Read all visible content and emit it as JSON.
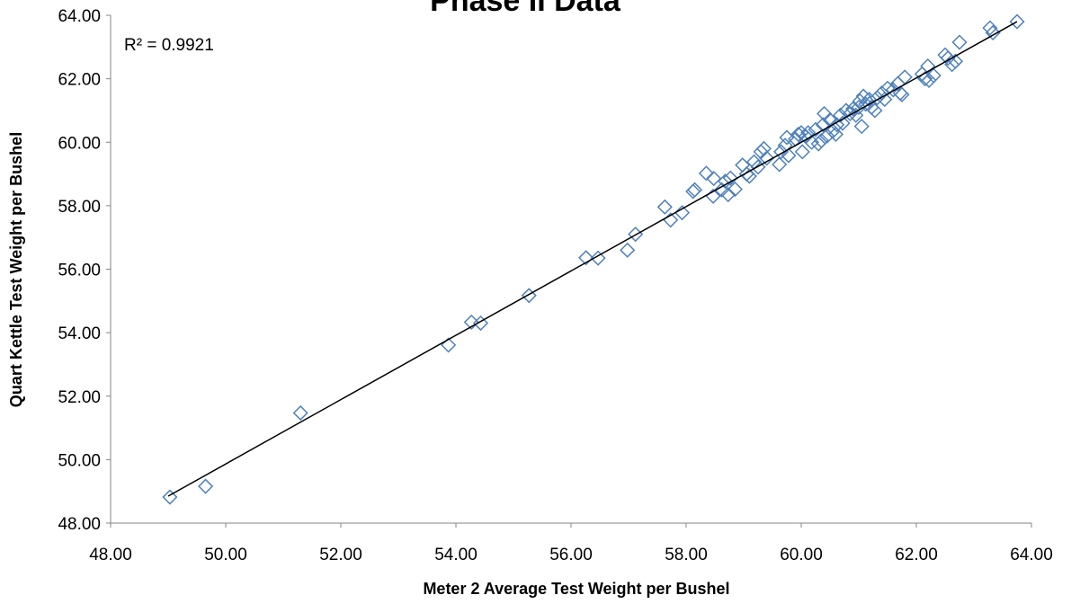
{
  "chart_data": {
    "type": "scatter",
    "title": "Phase II Data",
    "xlabel": "Meter 2 Average Test Weight per Bushel",
    "ylabel": "Quart Kettle Test Weight per Bushel",
    "xlim": [
      48,
      64
    ],
    "ylim": [
      48,
      64
    ],
    "x_ticks": [
      "48.00",
      "50.00",
      "52.00",
      "54.00",
      "56.00",
      "58.00",
      "60.00",
      "62.00",
      "64.00"
    ],
    "y_ticks": [
      "48.00",
      "50.00",
      "52.00",
      "54.00",
      "56.00",
      "58.00",
      "60.00",
      "62.00",
      "64.00"
    ],
    "grid": false,
    "legend": "none",
    "annotation": "R² = 0.9921",
    "marker": "diamond-open",
    "marker_color": "#4F81BD",
    "trendline": {
      "type": "linear",
      "color": "#000000",
      "x_range": [
        49.0,
        63.75
      ],
      "y_range": [
        48.85,
        63.8
      ]
    },
    "series": [
      {
        "points": [
          [
            49.03,
            48.82
          ],
          [
            49.65,
            49.16
          ],
          [
            51.3,
            51.47
          ],
          [
            53.87,
            53.61
          ],
          [
            54.27,
            54.33
          ],
          [
            54.43,
            54.3
          ],
          [
            55.27,
            55.17
          ],
          [
            56.26,
            56.36
          ],
          [
            56.47,
            56.35
          ],
          [
            56.98,
            56.6
          ],
          [
            57.12,
            57.1
          ],
          [
            57.63,
            57.96
          ],
          [
            57.73,
            57.55
          ],
          [
            57.93,
            57.78
          ],
          [
            58.12,
            58.45
          ],
          [
            58.15,
            58.5
          ],
          [
            58.35,
            59.02
          ],
          [
            58.47,
            58.3
          ],
          [
            58.48,
            58.86
          ],
          [
            58.62,
            58.5
          ],
          [
            58.68,
            58.77
          ],
          [
            58.73,
            58.35
          ],
          [
            58.77,
            58.87
          ],
          [
            58.85,
            58.52
          ],
          [
            58.98,
            59.28
          ],
          [
            59.05,
            59.0
          ],
          [
            59.1,
            58.93
          ],
          [
            59.18,
            59.38
          ],
          [
            59.25,
            59.22
          ],
          [
            59.3,
            59.7
          ],
          [
            59.35,
            59.8
          ],
          [
            59.4,
            59.5
          ],
          [
            59.62,
            59.3
          ],
          [
            59.65,
            59.7
          ],
          [
            59.72,
            59.9
          ],
          [
            59.75,
            60.15
          ],
          [
            59.78,
            59.58
          ],
          [
            59.9,
            60.1
          ],
          [
            59.95,
            60.25
          ],
          [
            60.0,
            60.3
          ],
          [
            60.02,
            59.7
          ],
          [
            60.08,
            60.18
          ],
          [
            60.12,
            60.3
          ],
          [
            60.18,
            60.0
          ],
          [
            60.25,
            60.4
          ],
          [
            60.3,
            59.95
          ],
          [
            60.35,
            60.05
          ],
          [
            60.38,
            60.55
          ],
          [
            60.4,
            60.9
          ],
          [
            60.45,
            60.2
          ],
          [
            60.5,
            60.7
          ],
          [
            60.55,
            60.35
          ],
          [
            60.6,
            60.25
          ],
          [
            60.62,
            60.55
          ],
          [
            60.68,
            60.85
          ],
          [
            60.72,
            60.6
          ],
          [
            60.78,
            61.0
          ],
          [
            60.85,
            60.9
          ],
          [
            60.9,
            61.05
          ],
          [
            60.95,
            60.85
          ],
          [
            61.0,
            61.1
          ],
          [
            61.02,
            61.3
          ],
          [
            61.05,
            60.5
          ],
          [
            61.08,
            61.45
          ],
          [
            61.12,
            61.2
          ],
          [
            61.18,
            61.35
          ],
          [
            61.22,
            61.1
          ],
          [
            61.28,
            61.0
          ],
          [
            61.32,
            61.4
          ],
          [
            61.4,
            61.55
          ],
          [
            61.45,
            61.35
          ],
          [
            61.5,
            61.7
          ],
          [
            61.6,
            61.65
          ],
          [
            61.68,
            61.85
          ],
          [
            61.72,
            61.55
          ],
          [
            61.75,
            61.5
          ],
          [
            61.8,
            62.05
          ],
          [
            62.1,
            62.15
          ],
          [
            62.15,
            62.0
          ],
          [
            62.2,
            62.4
          ],
          [
            62.22,
            61.95
          ],
          [
            62.3,
            62.1
          ],
          [
            62.5,
            62.75
          ],
          [
            62.55,
            62.65
          ],
          [
            62.62,
            62.45
          ],
          [
            62.68,
            62.55
          ],
          [
            62.75,
            63.15
          ],
          [
            63.28,
            63.6
          ],
          [
            63.33,
            63.45
          ],
          [
            63.75,
            63.8
          ]
        ]
      }
    ]
  }
}
